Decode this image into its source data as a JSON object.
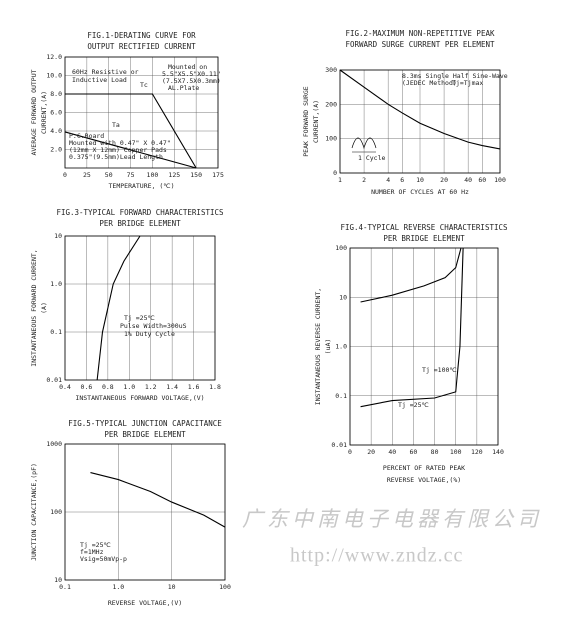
{
  "chart_data": [
    {
      "type": "line",
      "title": [
        "FIG.1-DERATING CURVE FOR",
        "OUTPUT RECTIFIED CURRENT"
      ],
      "ylabel": [
        "AVERAGE FORWARD OUTPUT",
        "CURRENT,(A)"
      ],
      "xlabel": [
        "TEMPERATURE, (℃)"
      ],
      "xlim": [
        0,
        175
      ],
      "xticks": [
        0,
        25,
        50,
        75,
        100,
        125,
        150,
        175
      ],
      "ylim": [
        0,
        12
      ],
      "yticks": [
        {
          "value": 2,
          "label": "2.0"
        },
        {
          "value": 4,
          "label": "4.0"
        },
        {
          "value": 6,
          "label": "6.0"
        },
        {
          "value": 8,
          "label": "8.0"
        },
        {
          "value": 10,
          "label": "10.0"
        },
        {
          "value": 12,
          "label": "12.0"
        }
      ],
      "grid": true,
      "series": [
        {
          "name": "Tc",
          "color": "#000000",
          "x": [
            0,
            100,
            150
          ],
          "values": [
            8,
            8,
            0
          ]
        },
        {
          "name": "Ta",
          "color": "#000000",
          "x": [
            0,
            150
          ],
          "values": [
            3.9,
            0
          ]
        }
      ],
      "annotations": [
        "60Hz Resistive or",
        "Inductive Load",
        "Mounted on",
        "5.5\"X5.5\"X0.11\"",
        "(7.5X7.5X0.3mm)",
        "AL.Plate",
        "P.C.Board",
        "Mounted with 0.47\" X 0.47\"",
        "(12mm X 12mm) Copper Pads",
        "0.375\"(9.5mm)Lead Length"
      ]
    },
    {
      "type": "line",
      "title": [
        "FIG.2-MAXIMUM NON-REPETITIVE PEAK",
        "FORWARD SURGE CURRENT PER ELEMENT"
      ],
      "ylabel": [
        "PEAK FORWARD SURGE",
        "CURRENT,(A)"
      ],
      "xlabel": [
        "NUMBER OF CYCLES AT 60 Hz"
      ],
      "xlog": true,
      "xlim": [
        1,
        100
      ],
      "xticks": [
        1,
        2,
        4,
        6,
        10,
        20,
        40,
        60,
        100
      ],
      "ylim": [
        0,
        300
      ],
      "yticks": [
        0,
        100,
        200,
        300
      ],
      "grid": true,
      "series": [
        {
          "color": "#000000",
          "x": [
            1,
            2,
            4,
            6,
            10,
            20,
            40,
            60,
            100
          ],
          "values": [
            300,
            250,
            200,
            175,
            145,
            115,
            90,
            80,
            70
          ]
        }
      ],
      "annotations": [
        "8.3ms Single Half Sine-Wave",
        "(JEDEC Method)",
        "Tj=Tjmax",
        "1 Cycle"
      ]
    },
    {
      "type": "line",
      "title": [
        "FIG.3-TYPICAL FORWARD CHARACTERISTICS",
        "PER BRIDGE ELEMENT"
      ],
      "ylabel": [
        "INSTANTANEOUS FORWARD CURRENT,",
        "(A)"
      ],
      "xlabel": [
        "INSTANTANEOUS FORWARD VOLTAGE,(V)"
      ],
      "xlim": [
        0.4,
        1.8
      ],
      "xticks": [
        0.4,
        0.6,
        0.8,
        {
          "value": 1,
          "label": "1.0"
        },
        1.2,
        1.4,
        1.6,
        1.8
      ],
      "ylog": true,
      "ylim": [
        0.01,
        10
      ],
      "yticks": [
        0.01,
        0.1,
        {
          "value": 1,
          "label": "1.0"
        },
        10
      ],
      "grid": true,
      "series": [
        {
          "color": "#000000",
          "x": [
            0.7,
            0.75,
            0.85,
            0.95,
            1.1
          ],
          "values": [
            0.01,
            0.1,
            1,
            3,
            10
          ]
        }
      ],
      "annotations": [
        "Tj =25℃",
        "Pulse Width=300uS",
        "1% Duty Cycle"
      ]
    },
    {
      "type": "line",
      "title": [
        "FIG.4-TYPICAL REVERSE CHARACTERISTICS",
        "PER BRIDGE ELEMENT"
      ],
      "ylabel": [
        "INSTANTANEOUS REVERSE CURRENT,",
        "(uA)"
      ],
      "xlabel": [
        "PERCENT OF RATED PEAK",
        "REVERSE VOLTAGE,(%)"
      ],
      "xlim": [
        0,
        140
      ],
      "xticks": [
        0,
        20,
        40,
        60,
        80,
        100,
        120,
        140
      ],
      "ylog": true,
      "ylim": [
        0.01,
        100
      ],
      "yticks": [
        0.01,
        0.1,
        {
          "value": 1,
          "label": "1.0"
        },
        10,
        100
      ],
      "grid": true,
      "series": [
        {
          "name": "Tj =100℃",
          "color": "#000000",
          "x": [
            10,
            40,
            70,
            90,
            100,
            105
          ],
          "values": [
            8,
            11,
            17,
            25,
            40,
            100
          ]
        },
        {
          "name": "Tj =25℃",
          "color": "#000000",
          "x": [
            10,
            40,
            80,
            100,
            104,
            107
          ],
          "values": [
            0.06,
            0.08,
            0.09,
            0.12,
            1,
            100
          ]
        }
      ]
    },
    {
      "type": "line",
      "title": [
        "FIG.5-TYPICAL JUNCTION CAPACITANCE",
        "PER BRIDGE ELEMENT"
      ],
      "ylabel": [
        "JUNCTION CAPACITANCE,(pF)"
      ],
      "xlabel": [
        "REVERSE VOLTAGE,(V)"
      ],
      "xlog": true,
      "xlim": [
        0.1,
        100
      ],
      "xticks": [
        0.1,
        {
          "value": 1,
          "label": "1.0"
        },
        10,
        100
      ],
      "ylog": true,
      "ylim": [
        10,
        1000
      ],
      "yticks": [
        10,
        100,
        1000
      ],
      "grid": true,
      "series": [
        {
          "color": "#000000",
          "x": [
            0.3,
            1,
            4,
            10,
            40,
            100
          ],
          "values": [
            380,
            300,
            200,
            140,
            90,
            60
          ]
        }
      ],
      "annotations": [
        "Tj =25℃",
        "f=1MHz",
        "Vsig=50mVp-p"
      ]
    }
  ],
  "watermark": {
    "company": "广东中南电子电器有限公司",
    "url": "http://www.zndz.cc"
  }
}
